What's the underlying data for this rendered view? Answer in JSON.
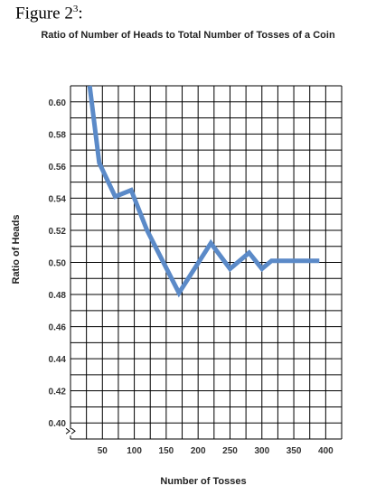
{
  "figure": {
    "label": "Figure 2",
    "superscript": "3",
    "suffix": ":"
  },
  "colors": {
    "line": "#5b8ac8",
    "grid": "#000000"
  },
  "chart_data": {
    "type": "line",
    "title": "Ratio of Number of Heads to Total Number of Tosses of a Coin",
    "xlabel": "Number of Tosses",
    "ylabel": "Ratio of Heads",
    "xlim": [
      0,
      425
    ],
    "ylim": [
      0.39,
      0.61
    ],
    "xticks": [
      50,
      100,
      150,
      200,
      250,
      300,
      350,
      400
    ],
    "yticks": [
      0.4,
      0.42,
      0.44,
      0.46,
      0.48,
      0.5,
      0.52,
      0.54,
      0.56,
      0.58,
      0.6
    ],
    "grid": true,
    "axis_break_y": true,
    "series": [
      {
        "x": [
          30,
          45,
          70,
          95,
          120,
          170,
          220,
          250,
          280,
          300,
          315,
          340,
          360,
          390
        ],
        "y": [
          0.61,
          0.562,
          0.541,
          0.545,
          0.52,
          0.481,
          0.512,
          0.496,
          0.506,
          0.496,
          0.501,
          0.501,
          0.501,
          0.501
        ]
      }
    ]
  }
}
